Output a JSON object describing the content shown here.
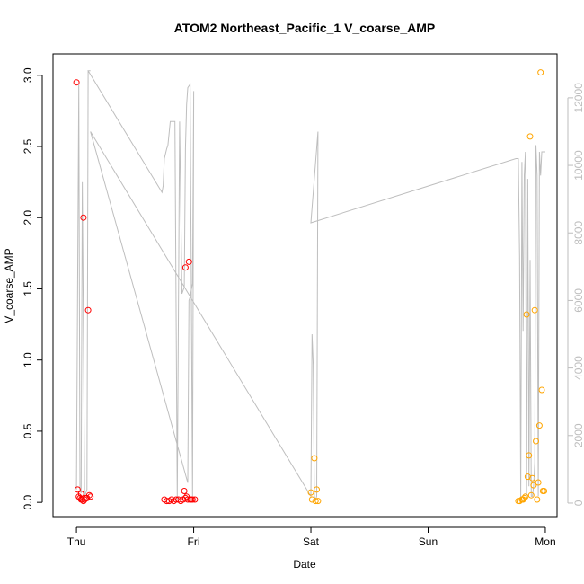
{
  "chart_data": {
    "type": "scatter",
    "title": "ATOM2 Northeast_Pacific_1 V_coarse_AMP",
    "xlabel": "Date",
    "ylabel": "V_coarse_AMP",
    "x_ticks": [
      "Thu",
      "Fri",
      "Sat",
      "Sun",
      "Mon"
    ],
    "y_ticks": [
      "0.0",
      "0.5",
      "1.0",
      "1.5",
      "2.0",
      "2.5",
      "3.0"
    ],
    "y_right_ticks": [
      "0",
      "2000",
      "4000",
      "6000",
      "8000",
      "10000",
      "12000"
    ],
    "xlim": [
      -0.2,
      4.1
    ],
    "ylim": [
      -0.1,
      3.15
    ],
    "y_right_lim": [
      -400,
      13300
    ],
    "colors": {
      "red": "#ff0000",
      "orange": "#ffa500",
      "line": "#bebebe"
    },
    "series": [
      {
        "color": "red",
        "x": [
          0.0,
          0.01,
          0.02,
          0.03,
          0.04,
          0.05,
          0.06,
          0.07,
          0.08,
          0.09,
          0.1,
          0.11,
          0.06,
          0.04,
          0.12,
          0.75,
          0.77,
          0.79,
          0.81,
          0.83,
          0.85,
          0.87,
          0.89,
          0.91,
          0.93,
          0.95,
          0.97,
          0.99,
          1.01,
          0.92,
          0.94,
          0.96,
          0.98,
          0.93
        ],
        "y": [
          2.95,
          0.09,
          0.04,
          0.03,
          0.02,
          0.02,
          0.01,
          0.02,
          0.03,
          0.03,
          1.35,
          0.05,
          2.0,
          0.06,
          0.04,
          0.02,
          0.01,
          0.01,
          0.02,
          0.01,
          0.02,
          0.02,
          0.01,
          0.02,
          0.03,
          0.02,
          0.02,
          0.02,
          0.02,
          0.08,
          0.04,
          1.69,
          0.02,
          1.65
        ]
      },
      {
        "color": "orange",
        "x": [
          2.0,
          2.01,
          2.03,
          2.04,
          2.05,
          2.06,
          3.77,
          3.78,
          3.8,
          3.81,
          3.82,
          3.83,
          3.84,
          3.85,
          3.86,
          3.87,
          3.88,
          3.89,
          3.9,
          3.91,
          3.92,
          3.93,
          3.94,
          3.95,
          3.96,
          3.97,
          3.98,
          3.99
        ],
        "y": [
          0.07,
          0.02,
          0.31,
          0.01,
          0.09,
          0.01,
          0.01,
          0.01,
          0.02,
          0.02,
          0.03,
          0.04,
          1.32,
          0.18,
          0.33,
          2.57,
          0.05,
          0.17,
          0.12,
          1.35,
          0.43,
          0.02,
          0.14,
          0.54,
          3.02,
          0.79,
          0.08,
          0.08
        ]
      }
    ],
    "line_series": {
      "color": "line",
      "axis": "right",
      "x": [
        0.0,
        0.02,
        0.03,
        0.04,
        0.05,
        0.07,
        0.09,
        0.1,
        0.12,
        0.1,
        0.73,
        0.74,
        0.75,
        0.77,
        0.78,
        0.8,
        0.82,
        0.84,
        0.86,
        0.88,
        0.9,
        0.92,
        0.93,
        0.94,
        0.95,
        0.97,
        0.98,
        0.99,
        1.0,
        0.99,
        0.98,
        0.97,
        0.96,
        0.95,
        0.12,
        2.0,
        2.01,
        2.02,
        2.03,
        2.04,
        2.05,
        2.06,
        2.0,
        3.75,
        3.77,
        3.78,
        3.79,
        3.8,
        3.81,
        3.82,
        3.83,
        3.84,
        3.85,
        3.86,
        3.87,
        3.88,
        3.89,
        3.9,
        3.91,
        3.92,
        3.93,
        3.94,
        3.95,
        3.96,
        3.97,
        3.98,
        3.99,
        4.0
      ],
      "y": [
        400,
        12400,
        400,
        300,
        9500,
        200,
        400,
        12800,
        12800,
        12800,
        9200,
        9400,
        10200,
        10500,
        10600,
        11300,
        11300,
        11300,
        100,
        11300,
        6200,
        6400,
        10500,
        11800,
        12300,
        12400,
        6600,
        200,
        12200,
        6500,
        6300,
        6100,
        6000,
        600,
        11000,
        200,
        5000,
        4100,
        200,
        100,
        200,
        11000,
        8300,
        10200,
        10200,
        7300,
        100,
        10100,
        5100,
        9700,
        10400,
        200,
        9600,
        500,
        7200,
        200,
        200,
        500,
        1200,
        10600,
        9700,
        200,
        10400,
        9700,
        10400,
        10400,
        10400,
        10400
      ]
    }
  }
}
